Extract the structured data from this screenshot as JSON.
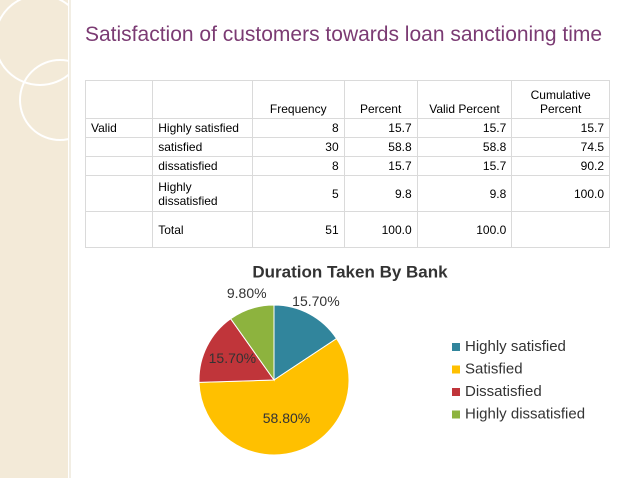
{
  "title": "Satisfaction of customers towards loan sanctioning time",
  "table": {
    "header": [
      null,
      null,
      "Frequency",
      "Percent",
      "Valid Percent",
      "Cumulative Percent"
    ],
    "rows": [
      [
        "Valid",
        "Highly satisfied",
        "8",
        "15.7",
        "15.7",
        "15.7"
      ],
      [
        null,
        "satisfied",
        "30",
        "58.8",
        "58.8",
        "74.5"
      ],
      [
        null,
        "dissatisfied",
        "8",
        "15.7",
        "15.7",
        "90.2"
      ],
      [
        null,
        "Highly dissatisfied",
        "5",
        "9.8",
        "9.8",
        "100.0"
      ],
      [
        null,
        "Total",
        "51",
        "100.0",
        "100.0",
        null
      ]
    ]
  },
  "chart_data": {
    "type": "pie",
    "title": "Duration Taken By Bank",
    "categories": [
      "Highly satisfied",
      "Satisfied",
      "Dissatisfied",
      "Highly dissatisfied"
    ],
    "values": [
      15.7,
      58.8,
      15.7,
      9.8
    ],
    "value_labels": [
      "15.70%",
      "58.80%",
      "15.70%",
      "9.80%"
    ],
    "colors": [
      "#31859c",
      "#ffc000",
      "#c0353a",
      "#8db33e"
    ],
    "legend": "right"
  }
}
